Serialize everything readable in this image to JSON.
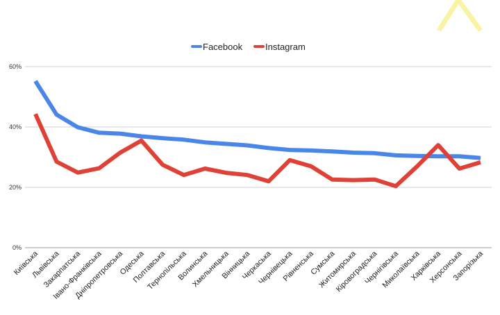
{
  "chart_data": {
    "type": "line",
    "categories": [
      "Київська",
      "Львівська",
      "Закарпатська",
      "Івано-Франківська",
      "Дніпропетровська",
      "Одеська",
      "Полтавська",
      "Тернопільська",
      "Волинська",
      "Хмельницька",
      "Вінницька",
      "Черкаська",
      "Чернівецька",
      "Рівненська",
      "Сумська",
      "Житомирська",
      "Кіровоградська",
      "Чернігівська",
      "Миколаївська",
      "Харківська",
      "Херсонська",
      "Запорізька"
    ],
    "series": [
      {
        "name": "Facebook",
        "color": "#4a86e8",
        "values": [
          55.2,
          44.1,
          39.9,
          38.1,
          37.8,
          36.9,
          36.3,
          35.8,
          34.9,
          34.4,
          33.9,
          33.0,
          32.4,
          32.2,
          31.9,
          31.5,
          31.3,
          30.6,
          30.4,
          30.3,
          30.3,
          29.7
        ]
      },
      {
        "name": "Instagram",
        "color": "#e04137",
        "values": [
          44.3,
          28.5,
          24.9,
          26.3,
          31.5,
          35.5,
          27.5,
          24.1,
          26.2,
          24.8,
          24.1,
          22.0,
          29.0,
          27.0,
          22.6,
          22.4,
          22.6,
          20.4,
          26.9,
          34.0,
          26.2,
          28.3
        ]
      }
    ],
    "ylim": [
      0,
      60
    ],
    "yticks": [
      0,
      20,
      40,
      60
    ],
    "ytick_labels": [
      "0%",
      "20%",
      "40%",
      "60%"
    ],
    "grid": true,
    "legend": "top-center"
  }
}
